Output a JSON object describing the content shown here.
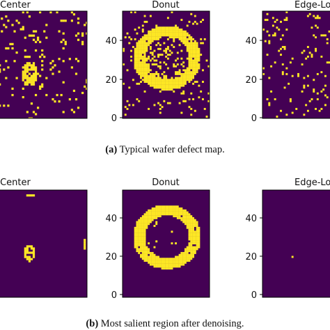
{
  "colors": {
    "background": "#440154",
    "defect": "#fde725",
    "axis": "#000000"
  },
  "panels": [
    {
      "title": "Center"
    },
    {
      "title": "Donut"
    },
    {
      "title": "Edge-Lo"
    }
  ],
  "axis_ticks": [
    "40",
    "20",
    "0"
  ],
  "figures": [
    {
      "tag": "(a)",
      "caption": " Typical wafer defect map."
    },
    {
      "tag": "(b)",
      "caption": " Most salient region after denoising."
    }
  ]
}
